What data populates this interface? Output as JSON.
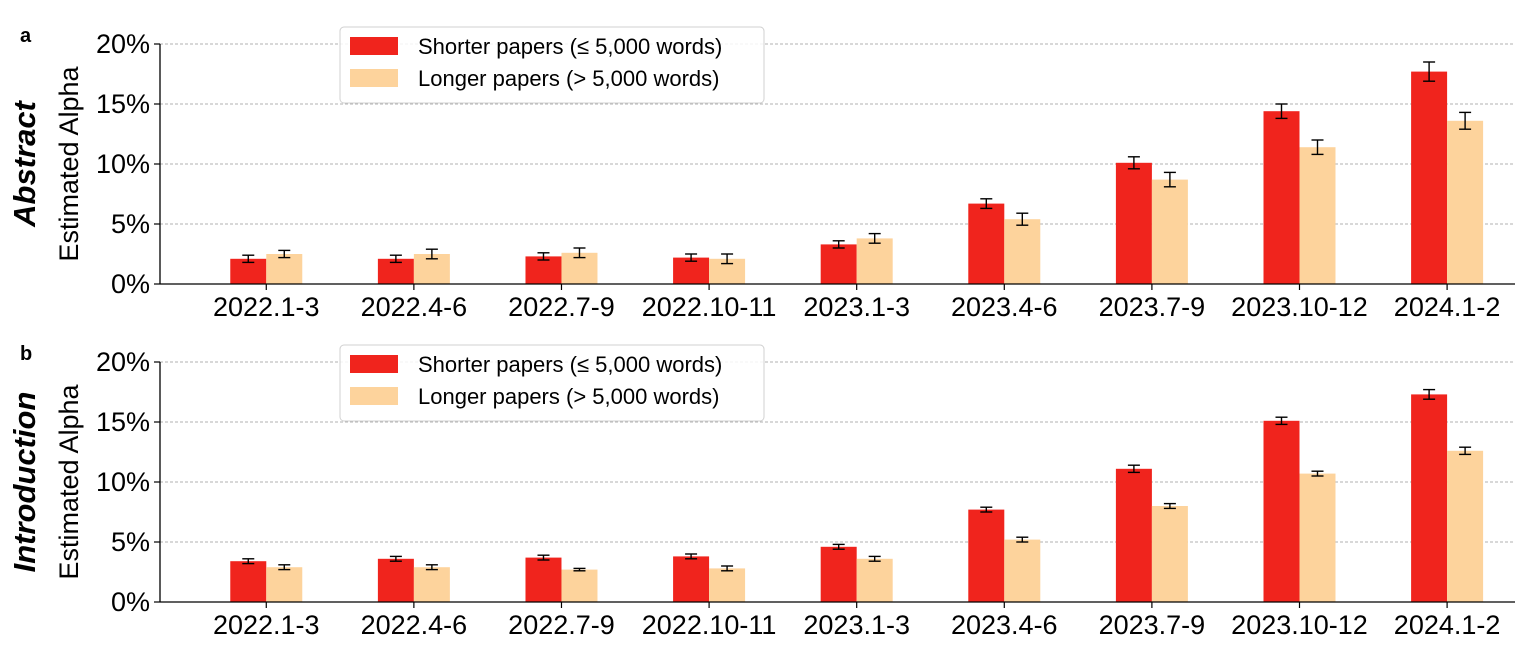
{
  "colors": {
    "shorter": "#f0241d",
    "longer": "#fdd39c",
    "grid": "#b0b0b0",
    "axis": "#000000"
  },
  "chart_data": [
    {
      "type": "bar",
      "panel": "a",
      "title": "Abstract",
      "ylabel": "Estimated Alpha",
      "ylim": [
        0,
        20
      ],
      "yticks": [
        "0%",
        "5%",
        "10%",
        "15%",
        "20%"
      ],
      "grid": "horizontal dashed",
      "legend_position": "upper-left",
      "categories": [
        "2022.1-3",
        "2022.4-6",
        "2022.7-9",
        "2022.10-11",
        "2023.1-3",
        "2023.4-6",
        "2023.7-9",
        "2023.10-12",
        "2024.1-2"
      ],
      "series": [
        {
          "name": "Shorter papers (≤ 5,000 words)",
          "color_key": "shorter",
          "values": [
            2.1,
            2.1,
            2.3,
            2.2,
            3.3,
            6.7,
            10.1,
            14.4,
            17.7
          ],
          "errors": [
            0.3,
            0.3,
            0.3,
            0.3,
            0.3,
            0.4,
            0.5,
            0.6,
            0.8
          ]
        },
        {
          "name": "Longer papers (> 5,000 words)",
          "color_key": "longer",
          "values": [
            2.5,
            2.5,
            2.6,
            2.1,
            3.8,
            5.4,
            8.7,
            11.4,
            13.6
          ],
          "errors": [
            0.3,
            0.4,
            0.4,
            0.4,
            0.4,
            0.5,
            0.6,
            0.6,
            0.7
          ]
        }
      ]
    },
    {
      "type": "bar",
      "panel": "b",
      "title": "Introduction",
      "ylabel": "Estimated Alpha",
      "ylim": [
        0,
        20
      ],
      "yticks": [
        "0%",
        "5%",
        "10%",
        "15%",
        "20%"
      ],
      "grid": "horizontal dashed",
      "legend_position": "upper-left",
      "categories": [
        "2022.1-3",
        "2022.4-6",
        "2022.7-9",
        "2022.10-11",
        "2023.1-3",
        "2023.4-6",
        "2023.7-9",
        "2023.10-12",
        "2024.1-2"
      ],
      "series": [
        {
          "name": "Shorter papers (≤ 5,000 words)",
          "color_key": "shorter",
          "values": [
            3.4,
            3.6,
            3.7,
            3.8,
            4.6,
            7.7,
            11.1,
            15.1,
            17.3
          ],
          "errors": [
            0.2,
            0.2,
            0.2,
            0.2,
            0.2,
            0.2,
            0.3,
            0.3,
            0.4
          ]
        },
        {
          "name": "Longer papers (> 5,000 words)",
          "color_key": "longer",
          "values": [
            2.9,
            2.9,
            2.7,
            2.8,
            3.6,
            5.2,
            8.0,
            10.7,
            12.6
          ],
          "errors": [
            0.2,
            0.2,
            0.1,
            0.2,
            0.2,
            0.2,
            0.2,
            0.2,
            0.3
          ]
        }
      ]
    }
  ]
}
